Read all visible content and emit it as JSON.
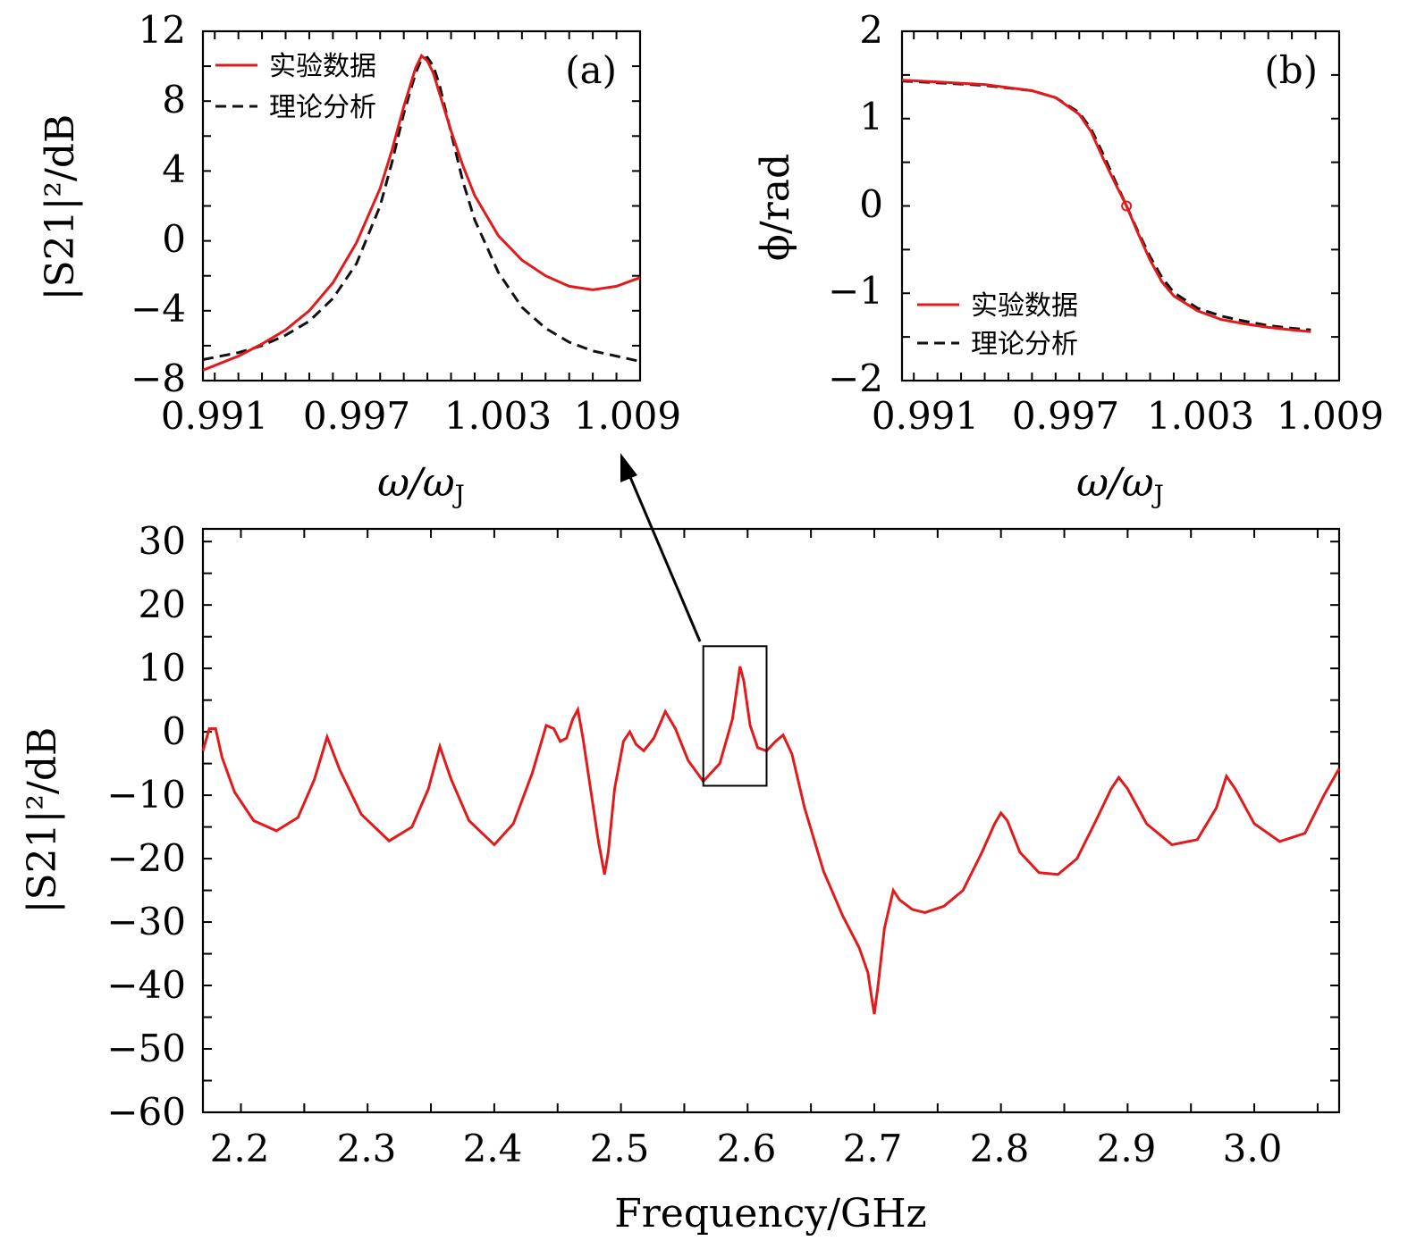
{
  "colors": {
    "experiment": "#e31a1c",
    "theory": "#111111",
    "axes": "#000000"
  },
  "chart_data": [
    {
      "id": "panel_a",
      "type": "line",
      "panel_label": "(a)",
      "xlabel_main": "ω/ω",
      "xlabel_sub": "J",
      "ylabel": "|S21|²/dB",
      "xlim": [
        0.9905,
        1.009
      ],
      "ylim": [
        -8,
        12
      ],
      "xticks": [
        "0.991",
        "0.997",
        "1.003",
        "1.009"
      ],
      "yticks": [
        "−8",
        "−4",
        "0",
        "4",
        "8",
        "12"
      ],
      "legend": {
        "position": "top-left",
        "entries": [
          "实验数据",
          "理论分析"
        ]
      },
      "series": [
        {
          "name": "实验数据",
          "style": "solid-red",
          "x": [
            0.9905,
            0.992,
            0.993,
            0.994,
            0.995,
            0.996,
            0.997,
            0.998,
            0.9985,
            0.999,
            0.9995,
            0.99975,
            1.0,
            1.00025,
            1.0005,
            1.001,
            1.0015,
            1.002,
            1.003,
            1.004,
            1.005,
            1.006,
            1.007,
            1.008,
            1.009
          ],
          "y": [
            -7.4,
            -6.6,
            -5.9,
            -5.1,
            -4.0,
            -2.4,
            -0.1,
            3.0,
            5.2,
            7.7,
            9.9,
            10.6,
            10.3,
            9.6,
            8.5,
            6.3,
            4.3,
            2.6,
            0.3,
            -1.1,
            -2.0,
            -2.6,
            -2.8,
            -2.6,
            -2.1
          ]
        },
        {
          "name": "理论分析",
          "style": "dashed-black",
          "x": [
            0.9905,
            0.992,
            0.993,
            0.994,
            0.995,
            0.996,
            0.997,
            0.998,
            0.9985,
            0.999,
            0.9995,
            0.99975,
            1.0,
            1.00025,
            1.0005,
            1.001,
            1.0015,
            1.002,
            1.003,
            1.004,
            1.005,
            1.006,
            1.007,
            1.008,
            1.009
          ],
          "y": [
            -6.8,
            -6.4,
            -6.0,
            -5.4,
            -4.6,
            -3.3,
            -1.3,
            2.0,
            4.5,
            7.3,
            9.6,
            10.4,
            10.5,
            10.0,
            9.0,
            6.2,
            3.4,
            1.2,
            -1.8,
            -3.8,
            -5.0,
            -5.8,
            -6.3,
            -6.6,
            -6.9
          ]
        }
      ]
    },
    {
      "id": "panel_b",
      "type": "line",
      "panel_label": "(b)",
      "xlabel_main": "ω/ω",
      "xlabel_sub": "J",
      "ylabel": "ϕ/rad",
      "xlim": [
        0.9905,
        1.009
      ],
      "ylim": [
        -2,
        2
      ],
      "xticks": [
        "0.991",
        "0.997",
        "1.003",
        "1.009"
      ],
      "yticks": [
        "−2",
        "−1",
        "0",
        "1",
        "2"
      ],
      "legend": {
        "position": "bottom-left",
        "entries": [
          "实验数据",
          "理论分析"
        ]
      },
      "marker": {
        "x": 1.0,
        "y": 0.0,
        "shape": "open-circle"
      },
      "series": [
        {
          "name": "实验数据",
          "style": "solid-red",
          "x": [
            0.9905,
            0.992,
            0.994,
            0.996,
            0.997,
            0.998,
            0.9985,
            0.999,
            0.9995,
            1.0,
            1.0005,
            1.001,
            1.0015,
            1.002,
            1.003,
            1.004,
            1.005,
            1.006,
            1.007,
            1.0078
          ],
          "y": [
            1.44,
            1.42,
            1.39,
            1.32,
            1.24,
            1.05,
            0.85,
            0.55,
            0.27,
            0.0,
            -0.32,
            -0.62,
            -0.87,
            -1.03,
            -1.2,
            -1.3,
            -1.35,
            -1.39,
            -1.42,
            -1.44
          ]
        },
        {
          "name": "理论分析",
          "style": "dashed-black",
          "x": [
            0.9905,
            0.992,
            0.994,
            0.996,
            0.997,
            0.998,
            0.9985,
            0.999,
            0.9995,
            1.0,
            1.0005,
            1.001,
            1.0015,
            1.002,
            1.003,
            1.004,
            1.005,
            1.006,
            1.007,
            1.0078
          ],
          "y": [
            1.43,
            1.41,
            1.38,
            1.32,
            1.24,
            1.07,
            0.88,
            0.6,
            0.3,
            0.0,
            -0.3,
            -0.58,
            -0.82,
            -0.99,
            -1.17,
            -1.26,
            -1.32,
            -1.37,
            -1.4,
            -1.42
          ]
        }
      ]
    },
    {
      "id": "panel_main",
      "type": "line",
      "xlabel": "Frequency/GHz",
      "ylabel": "|S21|²/dB",
      "xlim": [
        2.17,
        3.067
      ],
      "ylim": [
        -60,
        32
      ],
      "xticks": [
        "2.2",
        "2.3",
        "2.4",
        "2.5",
        "2.6",
        "2.7",
        "2.8",
        "2.9",
        "3.0"
      ],
      "yticks": [
        "30",
        "20",
        "10",
        "0",
        "−10",
        "−20",
        "−30",
        "−40",
        "−50",
        "−60"
      ],
      "inset_box": {
        "x_range": [
          2.565,
          2.615
        ],
        "y_range": [
          -8.5,
          13.5
        ]
      },
      "arrow_annotation": "zoom region shown in panel (a)",
      "series": [
        {
          "name": "实验数据",
          "style": "solid-red",
          "x": [
            2.17,
            2.175,
            2.18,
            2.185,
            2.195,
            2.21,
            2.228,
            2.245,
            2.258,
            2.268,
            2.278,
            2.295,
            2.317,
            2.335,
            2.348,
            2.357,
            2.366,
            2.38,
            2.4,
            2.415,
            2.43,
            2.441,
            2.447,
            2.452,
            2.457,
            2.462,
            2.466,
            2.47,
            2.476,
            2.482,
            2.487,
            2.49,
            2.495,
            2.502,
            2.507,
            2.512,
            2.518,
            2.526,
            2.535,
            2.543,
            2.553,
            2.565,
            2.578,
            2.588,
            2.594,
            2.597,
            2.602,
            2.608,
            2.615,
            2.622,
            2.628,
            2.635,
            2.645,
            2.66,
            2.675,
            2.688,
            2.695,
            2.698,
            2.7,
            2.703,
            2.708,
            2.715,
            2.72,
            2.73,
            2.74,
            2.755,
            2.77,
            2.785,
            2.795,
            2.8,
            2.805,
            2.815,
            2.83,
            2.845,
            2.86,
            2.875,
            2.887,
            2.893,
            2.9,
            2.915,
            2.935,
            2.955,
            2.97,
            2.978,
            2.985,
            3.0,
            3.02,
            3.04,
            3.055,
            3.067
          ],
          "y": [
            -3.0,
            0.5,
            0.5,
            -4.0,
            -9.5,
            -14.0,
            -15.6,
            -13.5,
            -7.5,
            -0.8,
            -6.0,
            -13.0,
            -17.2,
            -15.0,
            -9.0,
            -2.3,
            -7.5,
            -14.0,
            -17.8,
            -14.5,
            -6.5,
            1.0,
            0.5,
            -1.5,
            -1.0,
            2.0,
            3.5,
            -1.0,
            -9.0,
            -17.0,
            -22.5,
            -19.0,
            -9.0,
            -1.5,
            0.0,
            -2.0,
            -3.0,
            -1.0,
            3.2,
            0.5,
            -4.5,
            -7.8,
            -5.0,
            2.0,
            10.3,
            8.0,
            1.0,
            -2.5,
            -3.0,
            -1.5,
            -0.5,
            -3.5,
            -12.0,
            -22.0,
            -29.0,
            -34.0,
            -38.0,
            -42.0,
            -44.5,
            -40.0,
            -31.0,
            -25.0,
            -26.5,
            -28.0,
            -28.5,
            -27.5,
            -25.0,
            -19.0,
            -14.5,
            -12.8,
            -14.0,
            -19.0,
            -22.2,
            -22.5,
            -20.0,
            -14.0,
            -9.0,
            -7.2,
            -9.0,
            -14.5,
            -17.8,
            -17.0,
            -12.0,
            -7.0,
            -9.0,
            -14.5,
            -17.3,
            -16.0,
            -10.0,
            -5.8
          ]
        }
      ]
    }
  ]
}
